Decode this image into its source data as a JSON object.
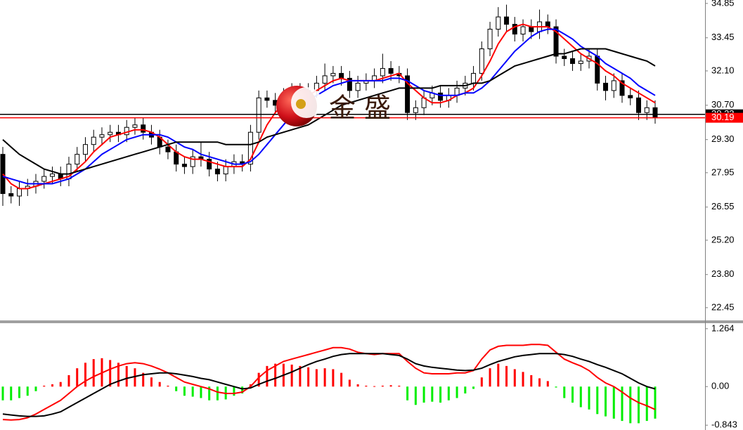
{
  "chart_data": [
    {
      "type": "candlestick",
      "open": [
        28.7,
        27.1,
        27.0,
        27.3,
        27.4,
        27.6,
        27.8,
        27.9,
        27.7,
        28.3,
        28.7,
        29.1,
        29.4,
        29.5,
        29.6,
        29.5,
        29.8,
        29.9,
        29.6,
        29.4,
        29.0,
        28.8,
        28.3,
        28.2,
        28.6,
        28.5,
        28.1,
        27.9,
        28.2,
        28.4,
        28.3,
        29.6,
        31.0,
        30.9,
        30.7,
        31.1,
        31.3,
        31.0,
        31.3,
        31.6,
        31.9,
        32.0,
        31.8,
        31.3,
        31.6,
        31.7,
        31.9,
        32.2,
        32.0,
        31.9,
        30.4,
        30.6,
        31.0,
        31.2,
        30.9,
        31.1,
        31.4,
        31.6,
        32.0,
        33.0,
        33.8,
        34.3,
        34.0,
        33.6,
        33.9,
        33.7,
        34.1,
        33.9,
        32.7,
        32.6,
        32.4,
        32.5,
        32.7,
        31.6,
        31.3,
        31.7,
        31.1,
        31.0,
        30.4,
        30.6
      ],
      "high": [
        29.0,
        27.4,
        27.6,
        27.7,
        27.9,
        28.1,
        28.2,
        28.2,
        28.6,
        29.0,
        29.4,
        29.7,
        29.8,
        29.9,
        29.9,
        30.1,
        30.2,
        30.2,
        29.9,
        29.7,
        29.3,
        29.1,
        28.6,
        28.9,
        29.2,
        28.8,
        28.4,
        28.5,
        28.7,
        28.7,
        29.9,
        31.3,
        31.3,
        31.2,
        31.4,
        31.6,
        31.6,
        31.6,
        31.9,
        32.4,
        32.3,
        32.3,
        32.1,
        31.9,
        32.0,
        32.2,
        32.8,
        32.5,
        32.3,
        32.2,
        30.9,
        31.3,
        31.5,
        31.5,
        31.4,
        31.7,
        31.9,
        32.3,
        33.3,
        34.1,
        34.7,
        34.8,
        34.3,
        34.2,
        34.2,
        34.6,
        34.4,
        34.2,
        33.0,
        32.9,
        32.8,
        33.0,
        33.0,
        31.9,
        32.0,
        32.0,
        31.4,
        31.3,
        30.9,
        30.9
      ],
      "low": [
        26.6,
        26.7,
        26.6,
        27.0,
        27.1,
        27.3,
        27.5,
        27.4,
        27.4,
        28.0,
        28.4,
        28.8,
        29.1,
        29.2,
        29.2,
        29.2,
        29.5,
        29.3,
        29.1,
        28.7,
        28.5,
        28.0,
        27.9,
        27.9,
        28.2,
        27.8,
        27.6,
        27.6,
        27.9,
        28.0,
        28.0,
        29.3,
        30.6,
        30.4,
        30.4,
        30.8,
        30.7,
        30.7,
        31.0,
        31.3,
        31.6,
        31.5,
        31.0,
        31.0,
        31.3,
        31.4,
        31.6,
        31.7,
        31.6,
        30.1,
        30.1,
        30.3,
        30.7,
        30.6,
        30.6,
        30.8,
        31.1,
        31.3,
        31.7,
        32.7,
        33.5,
        33.7,
        33.3,
        33.3,
        33.4,
        33.4,
        33.6,
        32.4,
        32.3,
        32.1,
        32.1,
        32.2,
        31.3,
        30.9,
        31.0,
        30.8,
        30.7,
        30.1,
        30.1,
        29.95
      ],
      "close": [
        27.1,
        27.0,
        27.3,
        27.4,
        27.6,
        27.8,
        27.9,
        27.7,
        28.3,
        28.7,
        29.1,
        29.4,
        29.5,
        29.6,
        29.5,
        29.8,
        29.9,
        29.6,
        29.4,
        29.0,
        28.8,
        28.3,
        28.2,
        28.6,
        28.5,
        28.1,
        27.9,
        28.2,
        28.4,
        28.3,
        29.6,
        31.0,
        30.9,
        30.7,
        31.1,
        31.3,
        31.0,
        31.3,
        31.6,
        31.9,
        32.0,
        31.8,
        31.3,
        31.6,
        31.7,
        31.9,
        32.2,
        32.0,
        31.9,
        30.4,
        30.6,
        31.0,
        31.2,
        30.9,
        31.1,
        31.4,
        31.6,
        32.0,
        33.0,
        33.8,
        34.3,
        34.0,
        33.6,
        33.9,
        33.7,
        34.1,
        33.9,
        32.7,
        32.6,
        32.4,
        32.5,
        32.7,
        31.6,
        31.3,
        31.7,
        31.1,
        31.0,
        30.4,
        30.6,
        30.19
      ],
      "up_color": "#ffffff",
      "down_color": "#000000",
      "series": [
        {
          "color": "#ff0000",
          "values": [
            27.9,
            27.5,
            27.3,
            27.3,
            27.4,
            27.5,
            27.6,
            27.7,
            27.8,
            28.1,
            28.4,
            28.8,
            29.1,
            29.4,
            29.5,
            29.6,
            29.7,
            29.7,
            29.6,
            29.4,
            29.1,
            28.8,
            28.6,
            28.5,
            28.5,
            28.4,
            28.3,
            28.2,
            28.2,
            28.2,
            28.5,
            29.2,
            29.9,
            30.4,
            30.8,
            31.0,
            31.0,
            31.1,
            31.3,
            31.5,
            31.7,
            31.8,
            31.7,
            31.7,
            31.7,
            31.7,
            31.8,
            31.9,
            32.0,
            31.6,
            31.3,
            31.0,
            30.8,
            30.8,
            30.9,
            31.1,
            31.2,
            31.4,
            31.9,
            32.5,
            33.2,
            33.7,
            33.9,
            34.0,
            33.9,
            33.9,
            33.9,
            33.7,
            33.4,
            33.1,
            32.8,
            32.6,
            32.4,
            32.1,
            31.9,
            31.6,
            31.4,
            31.2,
            31.0,
            30.8
          ]
        },
        {
          "color": "#0000ff",
          "values": [
            27.8,
            27.7,
            27.6,
            27.5,
            27.5,
            27.5,
            27.5,
            27.6,
            27.7,
            27.9,
            28.1,
            28.4,
            28.7,
            28.9,
            29.1,
            29.3,
            29.4,
            29.5,
            29.5,
            29.5,
            29.4,
            29.2,
            29.0,
            28.9,
            28.7,
            28.6,
            28.5,
            28.4,
            28.3,
            28.3,
            28.4,
            28.7,
            29.1,
            29.5,
            29.9,
            30.3,
            30.6,
            30.9,
            31.1,
            31.3,
            31.5,
            31.6,
            31.7,
            31.7,
            31.7,
            31.7,
            31.7,
            31.8,
            31.8,
            31.7,
            31.5,
            31.3,
            31.2,
            31.1,
            31.1,
            31.1,
            31.2,
            31.2,
            31.4,
            31.7,
            32.1,
            32.5,
            32.9,
            33.2,
            33.5,
            33.7,
            33.8,
            33.8,
            33.6,
            33.4,
            33.1,
            32.9,
            32.7,
            32.4,
            32.2,
            32.0,
            31.8,
            31.5,
            31.3,
            31.1
          ]
        },
        {
          "color": "#000000",
          "values": [
            29.3,
            29.0,
            28.7,
            28.5,
            28.3,
            28.1,
            28.0,
            27.9,
            27.9,
            28.0,
            28.1,
            28.2,
            28.3,
            28.4,
            28.5,
            28.6,
            28.7,
            28.8,
            28.9,
            29.0,
            29.1,
            29.2,
            29.2,
            29.2,
            29.2,
            29.2,
            29.2,
            29.1,
            29.1,
            29.1,
            29.1,
            29.2,
            29.4,
            29.5,
            29.6,
            29.7,
            29.8,
            29.9,
            30.1,
            30.3,
            30.5,
            30.7,
            30.8,
            30.9,
            31.0,
            31.1,
            31.2,
            31.3,
            31.4,
            31.4,
            31.4,
            31.4,
            31.4,
            31.5,
            31.5,
            31.5,
            31.5,
            31.6,
            31.6,
            31.7,
            31.9,
            32.1,
            32.3,
            32.4,
            32.5,
            32.6,
            32.7,
            32.8,
            32.8,
            32.9,
            33.0,
            33.0,
            33.0,
            33.0,
            32.9,
            32.8,
            32.7,
            32.6,
            32.5,
            32.3
          ]
        }
      ],
      "ylim": [
        21.96,
        34.99
      ],
      "yticks": [
        34.85,
        33.45,
        {
          "value": 32.1,
          "label": "32.10"
        },
        {
          "value": 30.7,
          "label": "30.70"
        },
        {
          "value": 29.3,
          "label": "29.30"
        },
        27.95,
        26.55,
        {
          "value": 25.2,
          "label": "25.20"
        },
        {
          "value": 23.8,
          "label": "23.80"
        },
        22.45
      ],
      "price_lines": [
        {
          "value": 30.33,
          "label": "30.33",
          "color": "#000000"
        },
        {
          "value": 30.19,
          "label": "30.19",
          "color": "#ff0000"
        }
      ],
      "watermark": "金 盛"
    },
    {
      "type": "macd",
      "values": [
        -0.3,
        -0.3,
        -0.25,
        -0.2,
        -0.1,
        0.02,
        0.05,
        0.1,
        0.25,
        0.4,
        0.52,
        0.6,
        0.62,
        0.58,
        0.52,
        0.45,
        0.4,
        0.3,
        0.2,
        0.1,
        0.02,
        -0.1,
        -0.2,
        -0.22,
        -0.25,
        -0.3,
        -0.3,
        -0.28,
        -0.2,
        -0.15,
        0.05,
        0.3,
        0.45,
        0.5,
        0.5,
        0.48,
        0.45,
        0.42,
        0.38,
        0.4,
        0.38,
        0.3,
        0.15,
        0.05,
        0.02,
        0.01,
        0.02,
        0.03,
        0.02,
        -0.3,
        -0.4,
        -0.35,
        -0.33,
        -0.35,
        -0.3,
        -0.25,
        -0.15,
        -0.05,
        0.2,
        0.4,
        0.5,
        0.45,
        0.38,
        0.32,
        0.25,
        0.18,
        0.12,
        -0.02,
        -0.25,
        -0.35,
        -0.45,
        -0.5,
        -0.6,
        -0.65,
        -0.7,
        -0.75,
        -0.8,
        -0.8,
        -0.75,
        -0.7
      ],
      "up_color": "#ff0000",
      "down_color": "#00ee00",
      "series": [
        {
          "color": "#ff0000",
          "values": [
            -0.72,
            -0.73,
            -0.72,
            -0.68,
            -0.6,
            -0.5,
            -0.4,
            -0.3,
            -0.15,
            0.0,
            0.12,
            0.22,
            0.3,
            0.38,
            0.45,
            0.5,
            0.52,
            0.5,
            0.45,
            0.38,
            0.3,
            0.2,
            0.1,
            0.05,
            0.0,
            -0.05,
            -0.12,
            -0.15,
            -0.15,
            -0.12,
            0.0,
            0.2,
            0.35,
            0.45,
            0.55,
            0.6,
            0.65,
            0.7,
            0.75,
            0.8,
            0.85,
            0.85,
            0.82,
            0.75,
            0.72,
            0.7,
            0.72,
            0.72,
            0.72,
            0.55,
            0.4,
            0.3,
            0.28,
            0.28,
            0.28,
            0.3,
            0.3,
            0.35,
            0.6,
            0.8,
            0.88,
            0.9,
            0.9,
            0.9,
            0.92,
            0.92,
            0.9,
            0.75,
            0.6,
            0.52,
            0.45,
            0.35,
            0.2,
            0.08,
            0.0,
            -0.12,
            -0.25,
            -0.35,
            -0.42,
            -0.5
          ]
        },
        {
          "color": "#000000",
          "values": [
            -0.6,
            -0.62,
            -0.64,
            -0.65,
            -0.65,
            -0.64,
            -0.6,
            -0.55,
            -0.45,
            -0.35,
            -0.25,
            -0.15,
            -0.05,
            0.05,
            0.12,
            0.18,
            0.22,
            0.26,
            0.28,
            0.3,
            0.3,
            0.28,
            0.25,
            0.22,
            0.18,
            0.15,
            0.1,
            0.05,
            0.0,
            -0.05,
            -0.03,
            0.05,
            0.12,
            0.18,
            0.25,
            0.32,
            0.4,
            0.48,
            0.55,
            0.6,
            0.66,
            0.7,
            0.72,
            0.72,
            0.72,
            0.72,
            0.72,
            0.7,
            0.68,
            0.6,
            0.5,
            0.45,
            0.42,
            0.4,
            0.38,
            0.36,
            0.35,
            0.36,
            0.4,
            0.48,
            0.55,
            0.6,
            0.65,
            0.68,
            0.7,
            0.72,
            0.72,
            0.72,
            0.7,
            0.66,
            0.6,
            0.55,
            0.48,
            0.42,
            0.35,
            0.28,
            0.18,
            0.08,
            0.0,
            -0.05
          ]
        }
      ],
      "ylim": [
        -0.948,
        1.384
      ],
      "yticks": [
        1.264,
        {
          "value": 0,
          "label": "0.00"
        },
        -0.843
      ]
    }
  ]
}
